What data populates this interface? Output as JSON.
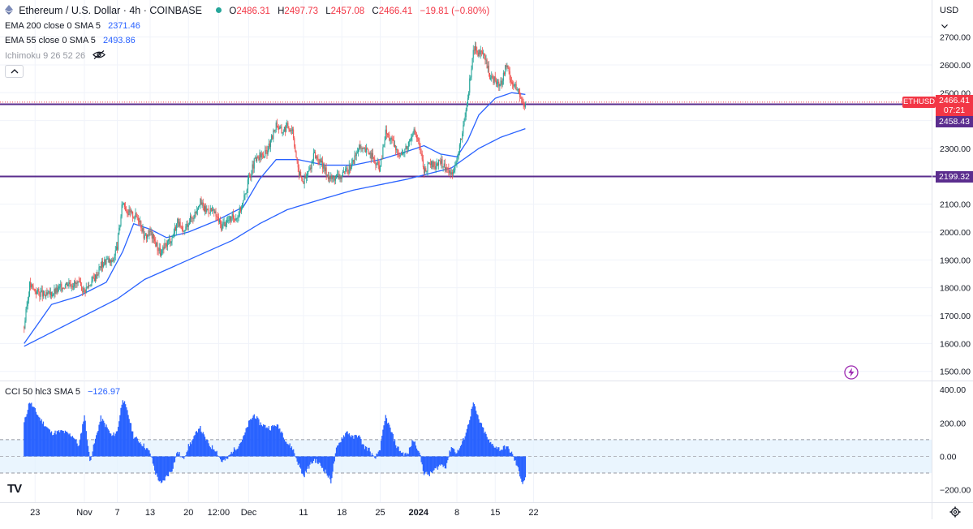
{
  "header": {
    "symbol_title": "Ethereum / U.S. Dollar · 4h · COINBASE",
    "status_color": "#26a69a",
    "ohlc": {
      "o_label": "O",
      "o": "2486.31",
      "h_label": "H",
      "h": "2497.73",
      "l_label": "L",
      "l": "2457.08",
      "c_label": "C",
      "c": "2466.41",
      "change": "−19.81 (−0.80%)"
    },
    "change_color": "#f23645",
    "currency": "USD"
  },
  "indicators": {
    "ema200": {
      "label": "EMA 200 close 0 SMA 5",
      "value": "2371.46",
      "color": "#2962ff"
    },
    "ema55": {
      "label": "EMA 55 close 0 SMA 5",
      "value": "2493.86",
      "color": "#2962ff"
    },
    "ichimoku": {
      "label": "Ichimoku 9 26 52 26",
      "icon": "eye-off-icon"
    },
    "collapse_icon": "chevron-up-icon",
    "cci": {
      "label": "CCI 50 hlc3 SMA 5",
      "value": "−126.97",
      "color": "#2962ff"
    }
  },
  "price_labels": {
    "symbol_tag": "ETHUSD",
    "last_price": "2466.41",
    "countdown": "07:21",
    "last_color": "#f23645",
    "upper_line_label": "2458.43",
    "lower_line_label": "2199.32",
    "line_color": "#5b2d8e"
  },
  "logo": "TV",
  "chart_data": [
    {
      "type": "candlestick",
      "title": "Ethereum / U.S. Dollar · 4h · COINBASE",
      "ylim": [
        1470,
        2760
      ],
      "y_ticks": [
        1500,
        1600,
        1700,
        1800,
        1900,
        2000,
        2100,
        2200,
        2300,
        2400,
        2500,
        2600,
        2700
      ],
      "y_tick_labels": [
        "1500.00",
        "1600.00",
        "1700.00",
        "1800.00",
        "1900.00",
        "2000.00",
        "2100.00",
        "2200.00",
        "2300.00",
        "2400.00",
        "2500.00",
        "2600.00",
        "2700.00"
      ],
      "x_tick_labels": [
        "23",
        "Nov",
        "7",
        "13",
        "20",
        "12:00",
        "Dec",
        "11",
        "18",
        "25",
        "2024",
        "8",
        "15",
        "22"
      ],
      "x_tick_days": [
        -8,
        1,
        7,
        13,
        20,
        25.5,
        31,
        41,
        48,
        55,
        62,
        69,
        76,
        83
      ],
      "close_path": [
        [
          -10,
          1660
        ],
        [
          -9,
          1810
        ],
        [
          -8,
          1790
        ],
        [
          -6,
          1770
        ],
        [
          -4,
          1790
        ],
        [
          -2,
          1820
        ],
        [
          0,
          1810
        ],
        [
          1,
          1790
        ],
        [
          3,
          1840
        ],
        [
          4,
          1880
        ],
        [
          5,
          1900
        ],
        [
          6,
          1890
        ],
        [
          7,
          1950
        ],
        [
          8,
          2110
        ],
        [
          9,
          2070
        ],
        [
          10,
          2060
        ],
        [
          11,
          2050
        ],
        [
          12,
          1980
        ],
        [
          13,
          2000
        ],
        [
          14,
          1960
        ],
        [
          15,
          1920
        ],
        [
          16,
          1960
        ],
        [
          17,
          1980
        ],
        [
          18,
          2040
        ],
        [
          19,
          1990
        ],
        [
          20,
          2040
        ],
        [
          21,
          2060
        ],
        [
          22,
          2110
        ],
        [
          23,
          2080
        ],
        [
          24,
          2080
        ],
        [
          25,
          2060
        ],
        [
          26,
          2020
        ],
        [
          27,
          2040
        ],
        [
          28,
          2050
        ],
        [
          29,
          2060
        ],
        [
          30,
          2110
        ],
        [
          31,
          2190
        ],
        [
          32,
          2250
        ],
        [
          33,
          2270
        ],
        [
          34,
          2280
        ],
        [
          35,
          2320
        ],
        [
          36,
          2390
        ],
        [
          37,
          2360
        ],
        [
          38,
          2380
        ],
        [
          39,
          2370
        ],
        [
          40,
          2220
        ],
        [
          41,
          2180
        ],
        [
          42,
          2220
        ],
        [
          43,
          2280
        ],
        [
          44,
          2250
        ],
        [
          45,
          2220
        ],
        [
          46,
          2190
        ],
        [
          47,
          2200
        ],
        [
          48,
          2200
        ],
        [
          49,
          2220
        ],
        [
          50,
          2250
        ],
        [
          51,
          2300
        ],
        [
          52,
          2290
        ],
        [
          53,
          2290
        ],
        [
          54,
          2250
        ],
        [
          55,
          2230
        ],
        [
          56,
          2360
        ],
        [
          57,
          2330
        ],
        [
          58,
          2290
        ],
        [
          59,
          2280
        ],
        [
          60,
          2310
        ],
        [
          61,
          2370
        ],
        [
          62,
          2320
        ],
        [
          63,
          2220
        ],
        [
          64,
          2240
        ],
        [
          65,
          2240
        ],
        [
          66,
          2250
        ],
        [
          67,
          2230
        ],
        [
          68,
          2210
        ],
        [
          69,
          2260
        ],
        [
          70,
          2350
        ],
        [
          71,
          2480
        ],
        [
          72,
          2660
        ],
        [
          73,
          2640
        ],
        [
          74,
          2630
        ],
        [
          75,
          2560
        ],
        [
          76,
          2540
        ],
        [
          77,
          2530
        ],
        [
          78,
          2600
        ],
        [
          79,
          2540
        ],
        [
          80,
          2510
        ],
        [
          81,
          2460
        ],
        [
          81.5,
          2466
        ]
      ],
      "ema55_path": [
        [
          -10,
          1600
        ],
        [
          -5,
          1740
        ],
        [
          0,
          1770
        ],
        [
          5,
          1820
        ],
        [
          8,
          1930
        ],
        [
          10,
          2030
        ],
        [
          13,
          2010
        ],
        [
          16,
          1980
        ],
        [
          20,
          2000
        ],
        [
          25,
          2040
        ],
        [
          30,
          2090
        ],
        [
          33,
          2190
        ],
        [
          36,
          2260
        ],
        [
          40,
          2260
        ],
        [
          45,
          2240
        ],
        [
          50,
          2240
        ],
        [
          55,
          2260
        ],
        [
          60,
          2290
        ],
        [
          63,
          2310
        ],
        [
          66,
          2280
        ],
        [
          69,
          2270
        ],
        [
          71,
          2330
        ],
        [
          73,
          2420
        ],
        [
          76,
          2480
        ],
        [
          79,
          2500
        ],
        [
          81.5,
          2494
        ]
      ],
      "ema200_path": [
        [
          -10,
          1590
        ],
        [
          0,
          1690
        ],
        [
          7,
          1760
        ],
        [
          12,
          1830
        ],
        [
          20,
          1900
        ],
        [
          28,
          1970
        ],
        [
          33,
          2030
        ],
        [
          38,
          2080
        ],
        [
          43,
          2110
        ],
        [
          50,
          2150
        ],
        [
          60,
          2190
        ],
        [
          68,
          2230
        ],
        [
          73,
          2300
        ],
        [
          77,
          2340
        ],
        [
          81.5,
          2371
        ]
      ],
      "horizontal_lines": [
        2458.43,
        2199.32
      ],
      "last_price": 2466.41
    },
    {
      "type": "bar",
      "title": "CCI 50 hlc3 SMA 5",
      "ylim": [
        -260,
        420
      ],
      "y_ticks": [
        400,
        200,
        0,
        -200
      ],
      "y_tick_labels": [
        "400.00",
        "200.00",
        "0.00",
        "−200.00"
      ],
      "band": [
        -100,
        100
      ],
      "profile": [
        [
          -10,
          200
        ],
        [
          -9,
          330
        ],
        [
          -7,
          220
        ],
        [
          -5,
          140
        ],
        [
          -3,
          150
        ],
        [
          -1,
          120
        ],
        [
          0,
          60
        ],
        [
          1,
          250
        ],
        [
          2,
          -30
        ],
        [
          3,
          100
        ],
        [
          4,
          230
        ],
        [
          5,
          180
        ],
        [
          6,
          120
        ],
        [
          7,
          150
        ],
        [
          8,
          350
        ],
        [
          9,
          250
        ],
        [
          10,
          120
        ],
        [
          11,
          90
        ],
        [
          12,
          60
        ],
        [
          13,
          20
        ],
        [
          14,
          -100
        ],
        [
          15,
          -170
        ],
        [
          16,
          -120
        ],
        [
          17,
          -80
        ],
        [
          18,
          30
        ],
        [
          19,
          -20
        ],
        [
          20,
          60
        ],
        [
          21,
          110
        ],
        [
          22,
          180
        ],
        [
          23,
          110
        ],
        [
          24,
          60
        ],
        [
          25,
          40
        ],
        [
          26,
          -30
        ],
        [
          27,
          -20
        ],
        [
          28,
          30
        ],
        [
          29,
          60
        ],
        [
          30,
          110
        ],
        [
          31,
          200
        ],
        [
          32,
          250
        ],
        [
          33,
          200
        ],
        [
          34,
          180
        ],
        [
          35,
          170
        ],
        [
          36,
          190
        ],
        [
          37,
          150
        ],
        [
          38,
          80
        ],
        [
          39,
          50
        ],
        [
          40,
          -40
        ],
        [
          41,
          -120
        ],
        [
          42,
          -60
        ],
        [
          43,
          -20
        ],
        [
          44,
          -50
        ],
        [
          45,
          -90
        ],
        [
          46,
          -150
        ],
        [
          47,
          40
        ],
        [
          48,
          110
        ],
        [
          49,
          150
        ],
        [
          50,
          110
        ],
        [
          51,
          130
        ],
        [
          52,
          60
        ],
        [
          53,
          40
        ],
        [
          54,
          -20
        ],
        [
          55,
          50
        ],
        [
          56,
          240
        ],
        [
          57,
          150
        ],
        [
          58,
          60
        ],
        [
          59,
          20
        ],
        [
          60,
          10
        ],
        [
          61,
          100
        ],
        [
          62,
          40
        ],
        [
          63,
          -100
        ],
        [
          64,
          -110
        ],
        [
          65,
          -80
        ],
        [
          66,
          -50
        ],
        [
          67,
          -60
        ],
        [
          68,
          60
        ],
        [
          69,
          20
        ],
        [
          70,
          80
        ],
        [
          71,
          180
        ],
        [
          72,
          320
        ],
        [
          73,
          220
        ],
        [
          74,
          150
        ],
        [
          75,
          80
        ],
        [
          76,
          60
        ],
        [
          77,
          40
        ],
        [
          78,
          60
        ],
        [
          79,
          20
        ],
        [
          80,
          -60
        ],
        [
          81,
          -160
        ],
        [
          81.5,
          -127
        ]
      ]
    }
  ]
}
